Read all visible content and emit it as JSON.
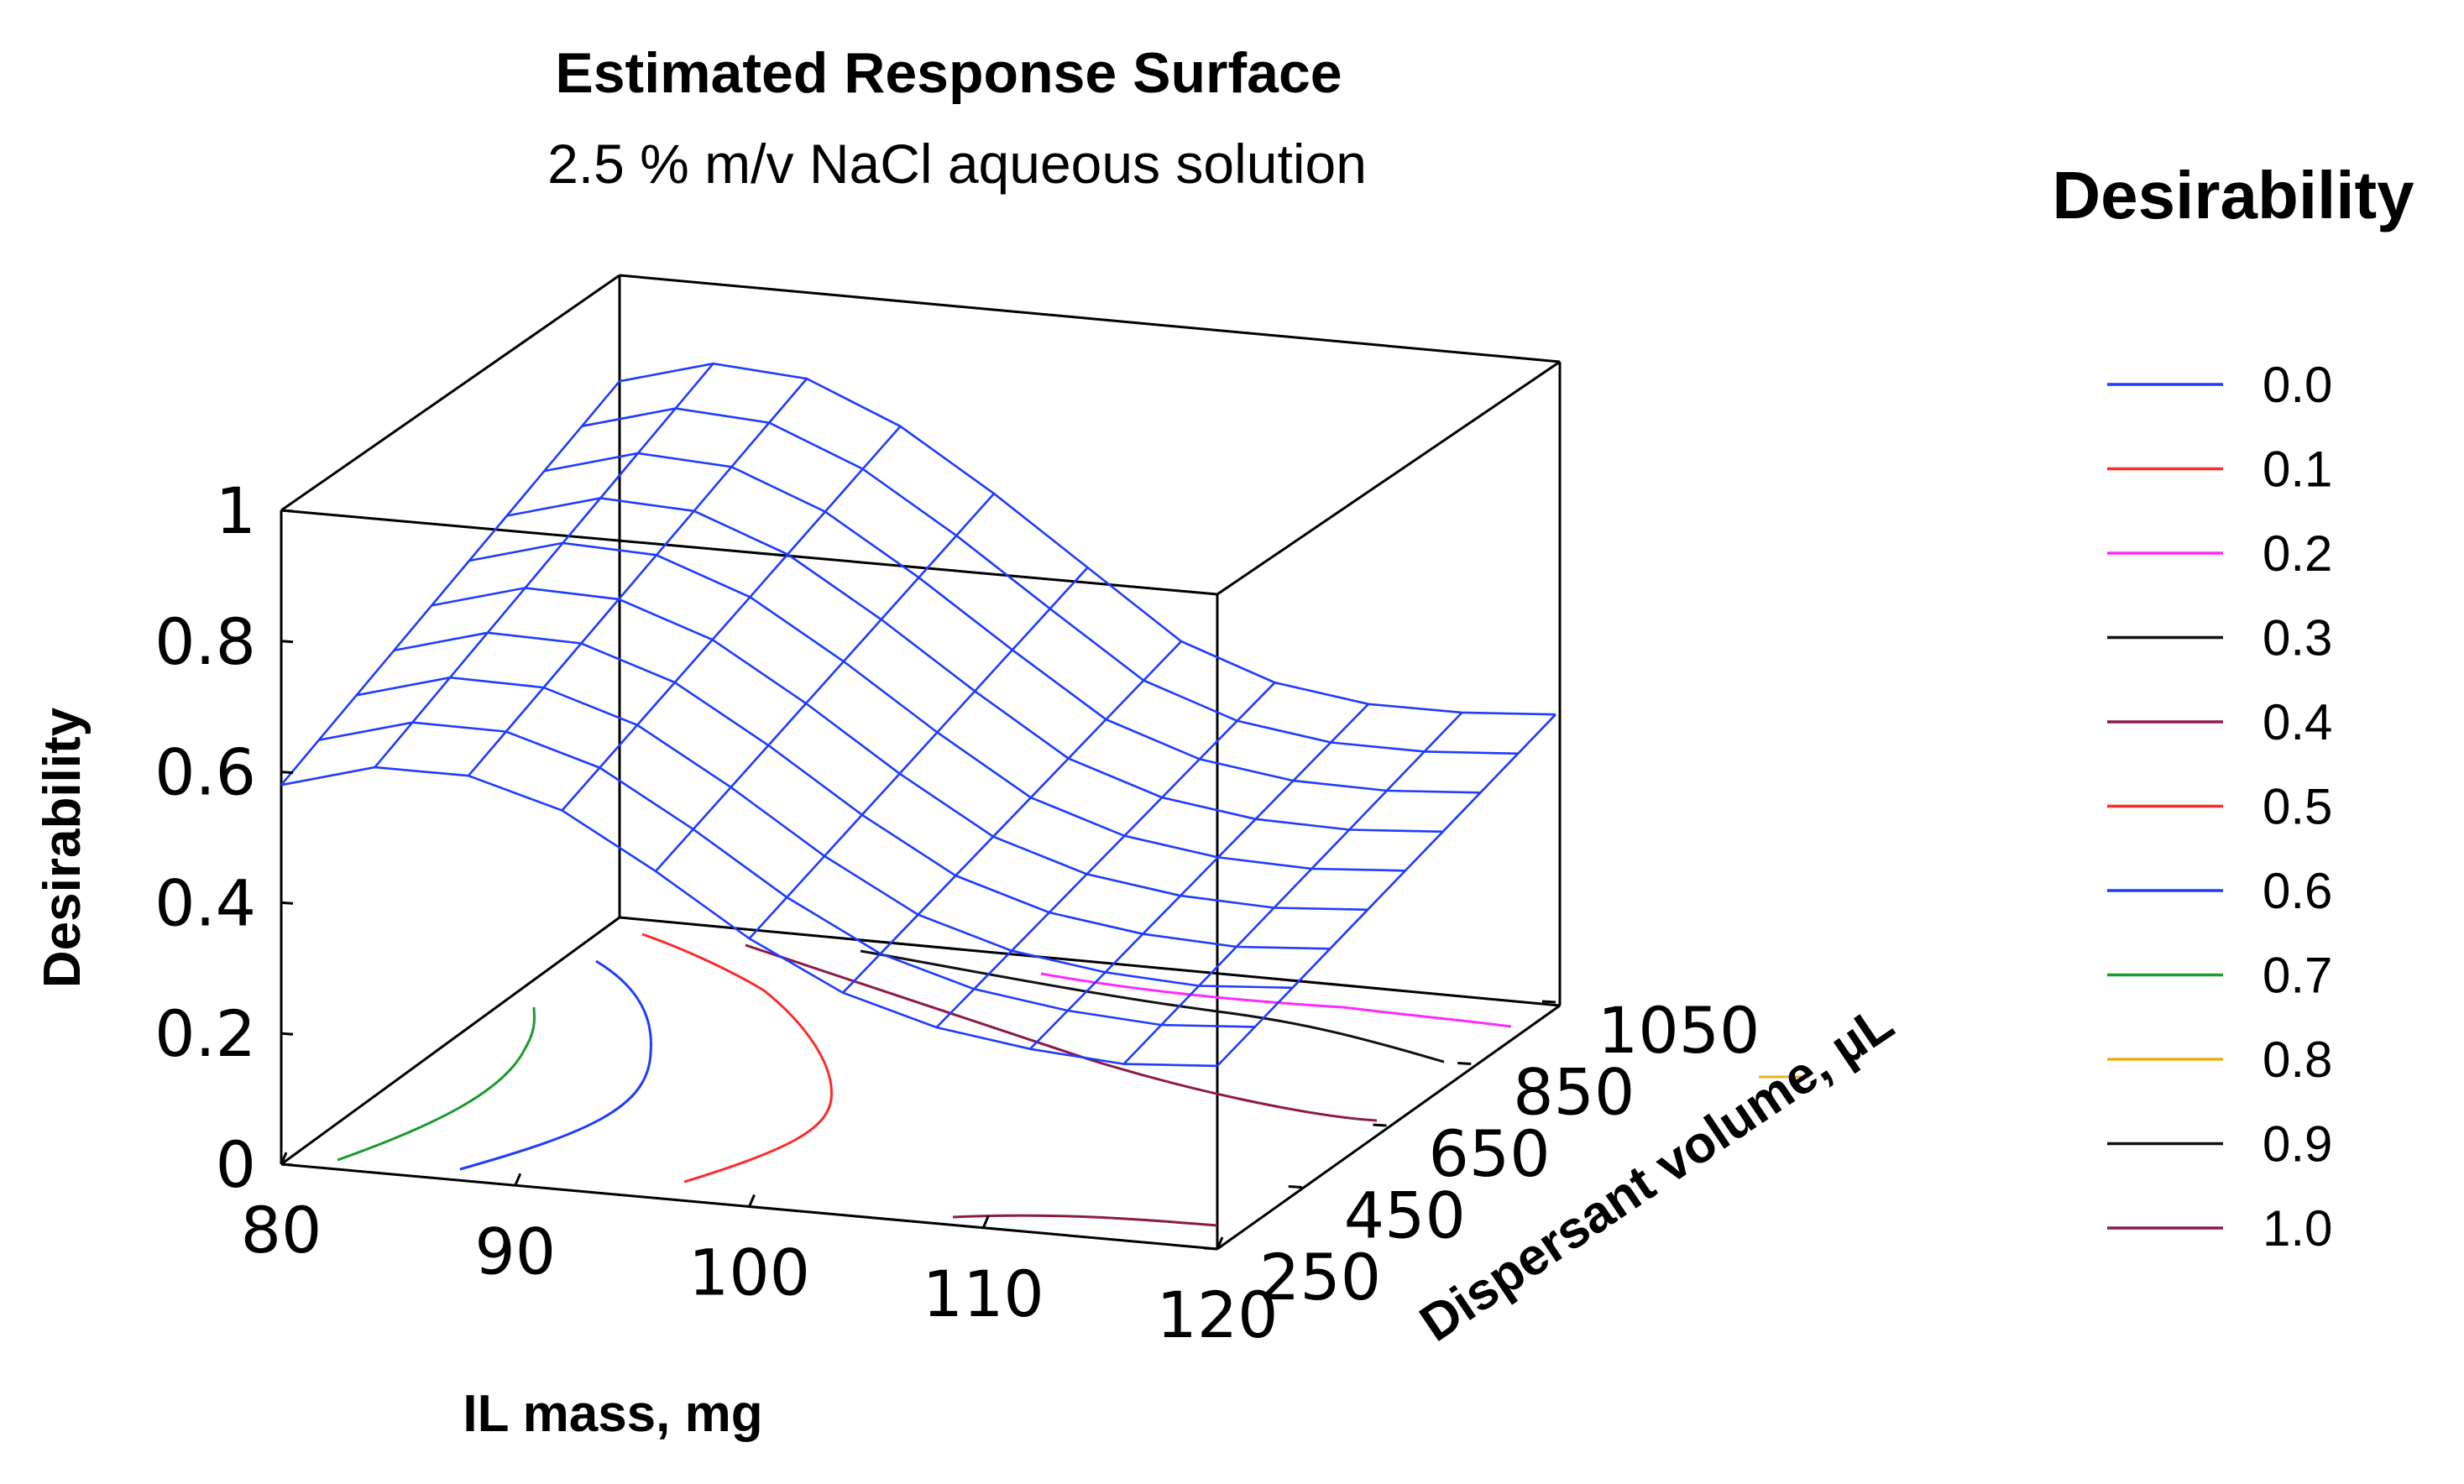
{
  "chart_data": {
    "type": "surface3d",
    "title": "Estimated Response Surface",
    "subtitle": "2.5 % m/v NaCl aqueous solution",
    "xlabel": "IL mass, mg",
    "ylabel": "Dispersant volume, µL",
    "zlabel": "Desirability",
    "x_ticks": [
      "80",
      "90",
      "100",
      "110",
      "120"
    ],
    "y_ticks": [
      "250",
      "450",
      "650",
      "850",
      "1050"
    ],
    "z_ticks": [
      "0",
      "0.2",
      "0.4",
      "0.6",
      "0.8",
      "1"
    ],
    "xlim": [
      80,
      120
    ],
    "ylim": [
      250,
      1050
    ],
    "zlim": [
      0,
      1
    ],
    "surface_color": "#1f3cff",
    "surface_profile": {
      "x": [
        80,
        84,
        88,
        92,
        96,
        100,
        104,
        108,
        112,
        116,
        120
      ],
      "desirability_at_low_dispersant": [
        0.58,
        0.62,
        0.62,
        0.58,
        0.5,
        0.41,
        0.34,
        0.3,
        0.28,
        0.27,
        0.28
      ],
      "desirability_at_high_dispersant": [
        0.82,
        0.86,
        0.85,
        0.79,
        0.7,
        0.6,
        0.5,
        0.45,
        0.43,
        0.43,
        0.44
      ]
    },
    "contour_lines": [
      {
        "level": "0.7",
        "color": "#1a9a2a"
      },
      {
        "level": "0.6",
        "color": "#1f3cff"
      },
      {
        "level": "0.5",
        "color": "#ff2a2a"
      },
      {
        "level": "0.4",
        "color": "#8b1a4a"
      },
      {
        "level": "0.3",
        "color": "#111111"
      },
      {
        "level": "0.2",
        "color": "#ff2aff"
      },
      {
        "level": "1.0",
        "color": "#8b1a4a"
      }
    ],
    "legend": {
      "title": "Desirability",
      "entries": [
        {
          "label": "0.0",
          "color": "#1f3cff"
        },
        {
          "label": "0.1",
          "color": "#ff2a2a"
        },
        {
          "label": "0.2",
          "color": "#ff2aff"
        },
        {
          "label": "0.3",
          "color": "#111111"
        },
        {
          "label": "0.4",
          "color": "#8b1a4a"
        },
        {
          "label": "0.5",
          "color": "#ff2a2a"
        },
        {
          "label": "0.6",
          "color": "#1f3cff"
        },
        {
          "label": "0.7",
          "color": "#1a9a2a"
        },
        {
          "label": "0.8",
          "color": "#e8b020"
        },
        {
          "label": "0.9",
          "color": "#111111"
        },
        {
          "label": "1.0",
          "color": "#8b1a4a"
        }
      ]
    }
  }
}
